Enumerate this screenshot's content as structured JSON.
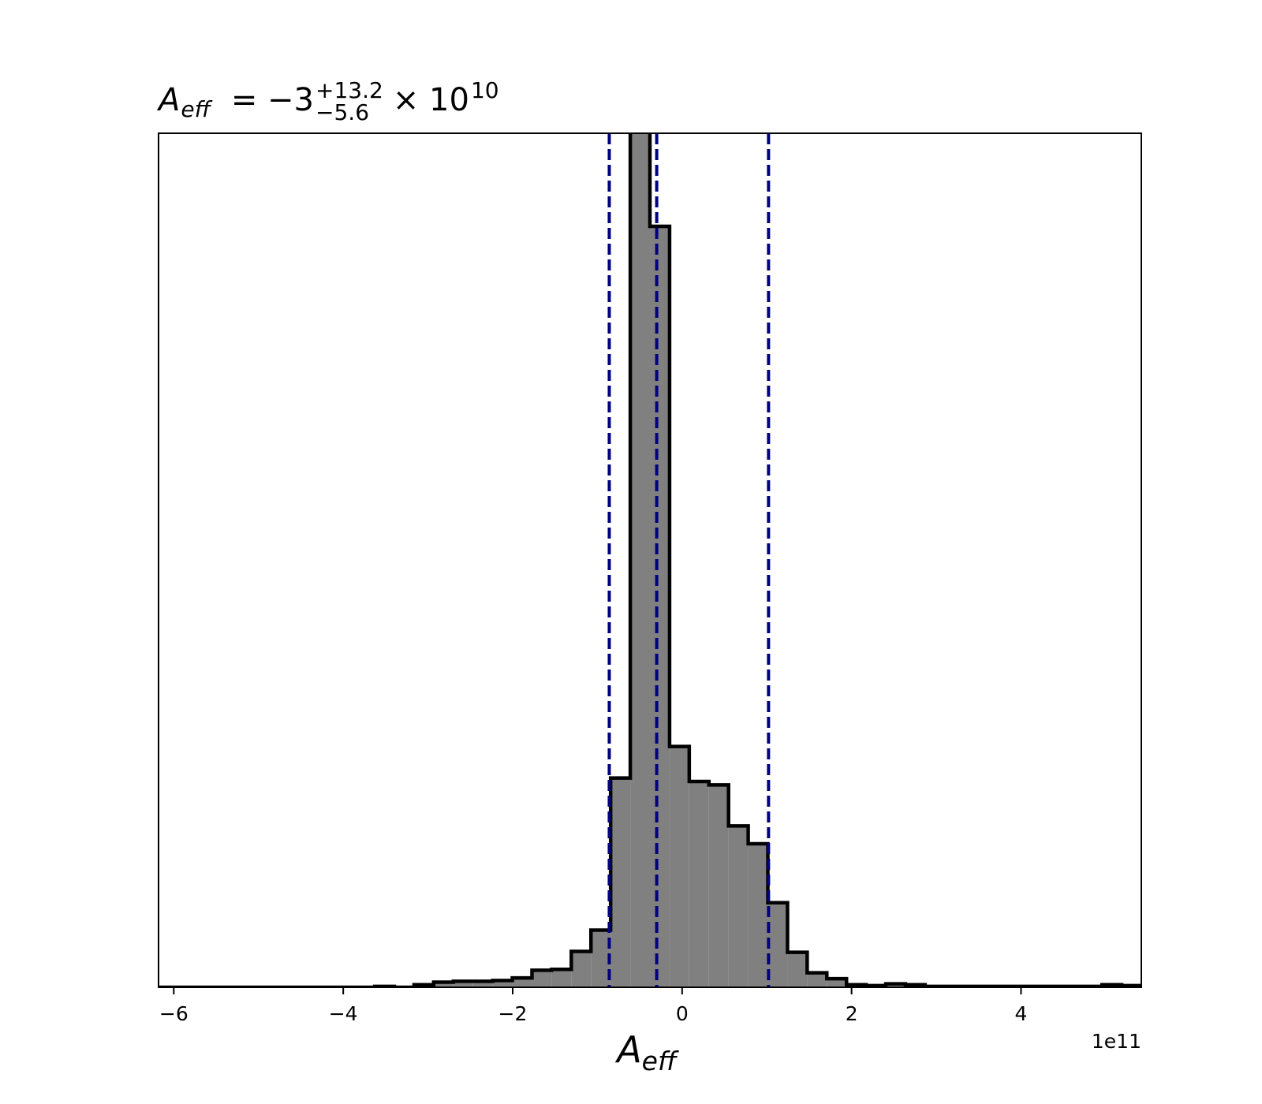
{
  "chart_data": {
    "type": "histogram",
    "title": {
      "symbol": "A",
      "subscript": "eff",
      "value": "= −3",
      "upper": "+13.2",
      "lower": "−5.6",
      "scale": "× 10",
      "exponent": "10"
    },
    "xlabel": {
      "symbol": "A",
      "subscript": "eff"
    },
    "offset_text": "1e11",
    "bins": [
      -6.18,
      -5.948,
      -5.716,
      -5.484,
      -5.252,
      -5.02,
      -4.788,
      -4.556,
      -4.324,
      -4.092,
      -3.86,
      -3.628,
      -3.396,
      -3.164,
      -2.932,
      -2.7,
      -2.468,
      -2.236,
      -2.004,
      -1.772,
      -1.54,
      -1.308,
      -1.076,
      -0.844,
      -0.612,
      -0.38,
      -0.148,
      0.084,
      0.316,
      0.548,
      0.78,
      1.012,
      1.244,
      1.476,
      1.708,
      1.94,
      2.172,
      2.404,
      2.636,
      2.868,
      3.1,
      3.332,
      3.564,
      3.796,
      4.028,
      4.26,
      4.492,
      4.724,
      4.956,
      5.188,
      5.42
    ],
    "values": [
      0,
      0,
      0,
      0,
      0,
      0,
      0,
      0,
      0,
      0,
      0,
      0.1,
      0,
      0.3,
      0.6,
      0.7,
      0.7,
      0.8,
      1.1,
      2.0,
      2.1,
      4.2,
      6.7,
      24.5,
      105,
      89.1,
      28.2,
      24.1,
      23.7,
      18.9,
      16.8,
      9.9,
      4.1,
      1.7,
      1.0,
      0.3,
      0.2,
      0.4,
      0.3,
      0.1,
      0.1,
      0.1,
      0.1,
      0.1,
      0.1,
      0.1,
      0.1,
      0.1,
      0.3,
      0.2
    ],
    "color": "#808080",
    "edge_color": "#000000",
    "vlines": [
      -0.86,
      -0.3,
      1.02
    ],
    "vline_color": "#000080",
    "xlim": [
      -6.18,
      5.42
    ],
    "ylim": [
      0,
      100
    ],
    "xticks": [
      {
        "value": -6,
        "label": "−6"
      },
      {
        "value": -4,
        "label": "−4"
      },
      {
        "value": -2,
        "label": "−2"
      },
      0,
      2,
      4
    ]
  }
}
